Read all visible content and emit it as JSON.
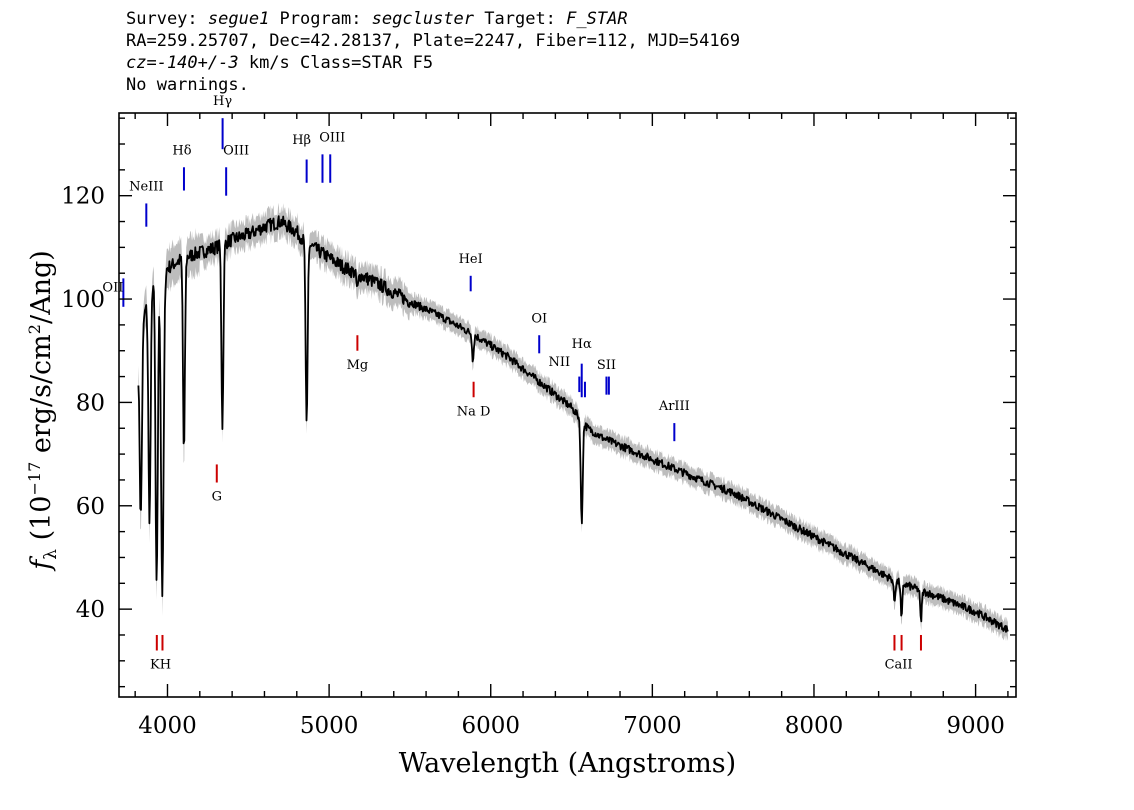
{
  "header": {
    "line1": {
      "survey_label": "Survey: ",
      "survey": "segue1",
      "program_label": " Program: ",
      "program": "segcluster",
      "target_label": " Target: ",
      "target": "F_STAR"
    },
    "line2": "RA=259.25707, Dec=42.28137, Plate=2247, Fiber=112, MJD=54169",
    "line3": {
      "cz": "cz=-140+/-3",
      "rest": " km/s Class=STAR F5"
    },
    "line4": "No warnings."
  },
  "chart_data": {
    "type": "line",
    "xlabel": "Wavelength (Angstroms)",
    "ylabel": "f_λ (10^-17 erg/s/cm^2/Ang)",
    "ylabel_parts": {
      "f": "f",
      "sub": "λ",
      "a": " (10",
      "exp1": "−17",
      "b": " erg/s/cm",
      "exp2": "2",
      "c": "/Ang)"
    },
    "xlim": [
      3700,
      9250
    ],
    "ylim": [
      23,
      136
    ],
    "x_ticks": [
      4000,
      5000,
      6000,
      7000,
      8000,
      9000
    ],
    "y_ticks": [
      40,
      60,
      80,
      100,
      120
    ],
    "x_tick_labels": [
      "4000",
      "5000",
      "6000",
      "7000",
      "8000",
      "9000"
    ],
    "y_tick_labels": [
      "40",
      "60",
      "80",
      "100",
      "120"
    ],
    "colors": {
      "spectrum": "#000000",
      "error_band": "#bdbdbd",
      "emission": "#0000cc",
      "absorption": "#cc0000"
    },
    "continuum": [
      [
        3820,
        88
      ],
      [
        3850,
        96
      ],
      [
        3900,
        103
      ],
      [
        4000,
        106
      ],
      [
        4100,
        108
      ],
      [
        4200,
        109
      ],
      [
        4300,
        110
      ],
      [
        4400,
        111.5
      ],
      [
        4500,
        112.5
      ],
      [
        4600,
        114
      ],
      [
        4700,
        115
      ],
      [
        4800,
        113
      ],
      [
        4850,
        111
      ],
      [
        4900,
        110
      ],
      [
        5000,
        108
      ],
      [
        5100,
        106
      ],
      [
        5200,
        104.5
      ],
      [
        5300,
        103
      ],
      [
        5500,
        99.5
      ],
      [
        5700,
        96.5
      ],
      [
        5900,
        93
      ],
      [
        6100,
        89
      ],
      [
        6300,
        84
      ],
      [
        6500,
        79
      ],
      [
        6600,
        75
      ],
      [
        6700,
        73
      ],
      [
        7000,
        69
      ],
      [
        7300,
        65
      ],
      [
        7500,
        62.5
      ],
      [
        8000,
        54
      ],
      [
        8500,
        45.5
      ],
      [
        8800,
        42
      ],
      [
        9000,
        39.5
      ],
      [
        9200,
        36
      ]
    ],
    "absorption_features": [
      {
        "center": 3835,
        "depth": 34,
        "width": 7
      },
      {
        "center": 3889,
        "depth": 44,
        "width": 7
      },
      {
        "center": 3933,
        "depth": 60,
        "width": 7
      },
      {
        "center": 3968,
        "depth": 62,
        "width": 8
      },
      {
        "center": 4102,
        "depth": 38,
        "width": 6
      },
      {
        "center": 4340,
        "depth": 35,
        "width": 6
      },
      {
        "center": 4861,
        "depth": 36,
        "width": 6
      },
      {
        "center": 5175,
        "depth": 3,
        "width": 6
      },
      {
        "center": 5890,
        "depth": 5,
        "width": 5
      },
      {
        "center": 6563,
        "depth": 20,
        "width": 6
      },
      {
        "center": 8498,
        "depth": 4,
        "width": 5
      },
      {
        "center": 8542,
        "depth": 7,
        "width": 5
      },
      {
        "center": 8662,
        "depth": 6,
        "width": 5
      }
    ],
    "emission_lines": [
      {
        "label": "OII",
        "wave": 3727,
        "y_top": 104,
        "y_bot": 98.5,
        "label_y": 101.5,
        "label_anchor": "end"
      },
      {
        "label": "NeIII",
        "wave": 3869,
        "y_top": 118.5,
        "y_bot": 114,
        "label_y": 121
      },
      {
        "label": "Hδ",
        "wave": 4102,
        "y_top": 125.5,
        "y_bot": 121,
        "label_y": 128,
        "label_dx": -2
      },
      {
        "label": "Hγ",
        "wave": 4341,
        "y_top": 135,
        "y_bot": 129,
        "label_y": 137.5
      },
      {
        "label": "OIII",
        "wave": 4363,
        "y_top": 125.5,
        "y_bot": 120,
        "label_y": 128,
        "label_dx": 10
      },
      {
        "label": "Hβ",
        "wave": 4861,
        "y_top": 127,
        "y_bot": 122.5,
        "label_y": 130,
        "label_dx": -5
      },
      {
        "label": "OIII",
        "wave": 4959,
        "y_top": 128,
        "y_bot": 122.5
      },
      {
        "label": "OIII",
        "wave": 5007,
        "y_top": 128,
        "y_bot": 122.5,
        "label_y": 130.5,
        "label_dx": 2
      },
      {
        "label": "HeI",
        "wave": 5876,
        "y_top": 104.5,
        "y_bot": 101.5,
        "label_y": 107
      },
      {
        "label": "OI",
        "wave": 6300,
        "y_top": 93,
        "y_bot": 89.5,
        "label_y": 95.5
      },
      {
        "label": "NII",
        "wave": 6548,
        "y_top": 85,
        "y_bot": 82,
        "label_y": 87,
        "label_dx": -20
      },
      {
        "label": "Hα",
        "wave": 6563,
        "y_top": 87.5,
        "y_bot": 81,
        "label_y": 90.5
      },
      {
        "label": "NII",
        "wave": 6583,
        "y_top": 84,
        "y_bot": 81
      },
      {
        "label": "SII",
        "wave": 6716,
        "y_top": 85,
        "y_bot": 81.5,
        "label_y": 86.5
      },
      {
        "label": "SII",
        "wave": 6731,
        "y_top": 85,
        "y_bot": 81.5
      },
      {
        "label": "ArIII",
        "wave": 7136,
        "y_top": 76,
        "y_bot": 72.5,
        "label_y": 78.5
      }
    ],
    "absorption_lines": [
      {
        "label": "K",
        "wave": 3934,
        "y_top": 35,
        "y_bot": 32,
        "label_y": 28.5,
        "label_dx": -2
      },
      {
        "label": "H",
        "wave": 3969,
        "y_top": 35,
        "y_bot": 32,
        "label_y": 28.5,
        "label_dx": 3
      },
      {
        "label": "G",
        "wave": 4305,
        "y_top": 68,
        "y_bot": 64.5,
        "label_y": 61
      },
      {
        "label": "Mg",
        "wave": 5175,
        "y_top": 93,
        "y_bot": 90,
        "label_y": 86.5
      },
      {
        "label": "Na D",
        "wave": 5894,
        "y_top": 84,
        "y_bot": 81,
        "label_y": 77.5
      },
      {
        "label": "CaII",
        "wave": 8498,
        "y_top": 35,
        "y_bot": 32
      },
      {
        "label": "CaII",
        "wave": 8542,
        "y_top": 35,
        "y_bot": 32,
        "label_y": 28.5,
        "label_dx": -3
      },
      {
        "label": "CaII",
        "wave": 8662,
        "y_top": 35,
        "y_bot": 32
      }
    ]
  }
}
